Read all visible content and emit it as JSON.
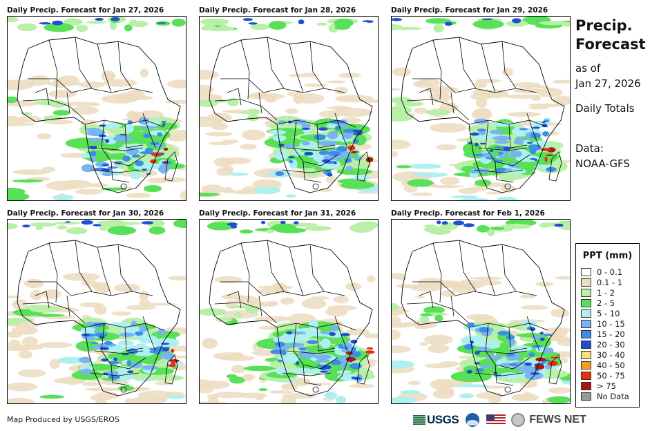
{
  "panels": [
    {
      "title": "Daily Precip. Forecast for Jan 27, 2026",
      "variant": 0
    },
    {
      "title": "Daily Precip. Forecast for Jan 28, 2026",
      "variant": 1
    },
    {
      "title": "Daily Precip. Forecast for Jan 29, 2026",
      "variant": 2
    },
    {
      "title": "Daily Precip. Forecast for Jan 30, 2026",
      "variant": 3
    },
    {
      "title": "Daily Precip. Forecast for Jan 31, 2026",
      "variant": 4
    },
    {
      "title": "Daily Precip. Forecast for Feb 1, 2026",
      "variant": 5
    }
  ],
  "side": {
    "title_line1": "Precip.",
    "title_line2": "Forecast",
    "asof_line1": "as of",
    "asof_line2": "Jan 27, 2026",
    "totals": "Daily Totals",
    "data_line1": "Data:",
    "data_line2": "NOAA-GFS"
  },
  "legend": {
    "title": "PPT (mm)",
    "items": [
      {
        "label": "0 - 0.1",
        "color": "#ffffff"
      },
      {
        "label": "0.1 - 1",
        "color": "#ecdcc0"
      },
      {
        "label": "1 - 2",
        "color": "#b8f0a8"
      },
      {
        "label": "2 - 5",
        "color": "#58e058"
      },
      {
        "label": "5 - 10",
        "color": "#aef0f0"
      },
      {
        "label": "10 - 15",
        "color": "#78b4f0"
      },
      {
        "label": "15 - 20",
        "color": "#3c8ce8"
      },
      {
        "label": "20 - 30",
        "color": "#1c50d0"
      },
      {
        "label": "30 - 40",
        "color": "#f8e080"
      },
      {
        "label": "40 - 50",
        "color": "#f0a020"
      },
      {
        "label": "50 - 75",
        "color": "#e83010"
      },
      {
        "label": "> 75",
        "color": "#a81818"
      },
      {
        "label": "No Data",
        "color": "#999999"
      }
    ]
  },
  "footer": {
    "credit": "Map Produced by USGS/EROS",
    "usgs_text": "USGS",
    "fews_text": "FEWS NET"
  }
}
